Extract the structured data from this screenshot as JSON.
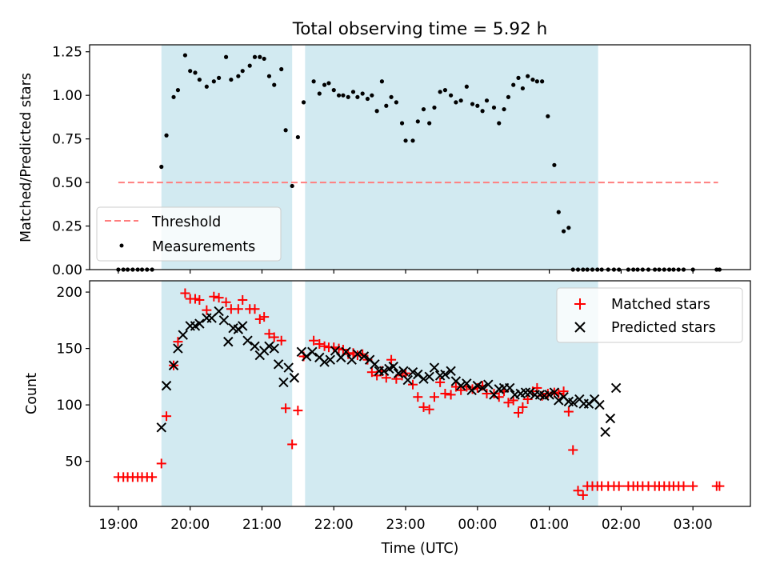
{
  "title": "Total observing time = 5.92 h",
  "colors": {
    "shade": "#add8e6",
    "threshold": "#ff7f7f",
    "matched": "#ff0000",
    "predicted": "#000000",
    "measurements": "#000000"
  },
  "chart_data": [
    {
      "type": "scatter",
      "panel": "top",
      "ylabel": "Matched/Predicted stars",
      "xlabel": "",
      "xlim": [
        18.6,
        27.8
      ],
      "ylim": [
        0,
        1.29
      ],
      "yticks": [
        0,
        0.25,
        0.5,
        0.75,
        1.0,
        1.25
      ],
      "ytick_labels": [
        "0.00",
        "0.25",
        "0.50",
        "0.75",
        "1.00",
        "1.25"
      ],
      "xticks": [
        19,
        20,
        21,
        22,
        23,
        24,
        25,
        26,
        27
      ],
      "xtick_labels_shown": false,
      "shaded_intervals": [
        [
          19.6,
          21.42
        ],
        [
          21.6,
          25.68
        ]
      ],
      "legend": {
        "placement": "lower-left",
        "entries": [
          "Threshold",
          "Measurements"
        ]
      },
      "threshold": {
        "name": "Threshold",
        "value": 0.5,
        "x_range": [
          19.0,
          27.35
        ],
        "style": "dashed"
      },
      "series": [
        {
          "name": "Measurements",
          "marker": "dot",
          "x": [
            19.0,
            19.07,
            19.13,
            19.2,
            19.27,
            19.33,
            19.4,
            19.47,
            19.6,
            19.67,
            19.77,
            19.83,
            19.93,
            20.0,
            20.07,
            20.13,
            20.23,
            20.33,
            20.4,
            20.5,
            20.57,
            20.67,
            20.73,
            20.83,
            20.9,
            20.97,
            21.03,
            21.1,
            21.17,
            21.27,
            21.33,
            21.42,
            21.5,
            21.58,
            21.72,
            21.8,
            21.87,
            21.93,
            22.0,
            22.07,
            22.13,
            22.2,
            22.27,
            22.33,
            22.4,
            22.47,
            22.53,
            22.6,
            22.67,
            22.73,
            22.8,
            22.87,
            22.95,
            23.0,
            23.1,
            23.17,
            23.25,
            23.33,
            23.4,
            23.48,
            23.55,
            23.63,
            23.7,
            23.77,
            23.85,
            23.93,
            24.0,
            24.07,
            24.13,
            24.23,
            24.3,
            24.37,
            24.43,
            24.5,
            24.57,
            24.63,
            24.7,
            24.77,
            24.83,
            24.9,
            24.98,
            25.07,
            25.13,
            25.2,
            25.27,
            25.33,
            25.4,
            25.47,
            25.53,
            25.6,
            25.67,
            25.73,
            25.82,
            25.9,
            25.97,
            26.1,
            26.17,
            26.23,
            26.3,
            26.38,
            26.47,
            26.53,
            26.6,
            26.67,
            26.73,
            26.8,
            26.87,
            27.0,
            27.33,
            27.37
          ],
          "y": [
            0,
            0,
            0,
            0,
            0,
            0,
            0,
            0,
            0.59,
            0.77,
            0.99,
            1.03,
            1.23,
            1.14,
            1.13,
            1.09,
            1.05,
            1.08,
            1.1,
            1.22,
            1.09,
            1.11,
            1.14,
            1.17,
            1.22,
            1.22,
            1.21,
            1.11,
            1.06,
            1.15,
            0.8,
            0.48,
            0.76,
            0.96,
            1.08,
            1.01,
            1.06,
            1.07,
            1.03,
            1.0,
            1.0,
            0.99,
            1.02,
            0.99,
            1.01,
            0.98,
            1.0,
            0.91,
            1.08,
            0.94,
            0.99,
            0.96,
            0.84,
            0.74,
            0.74,
            0.85,
            0.92,
            0.84,
            0.93,
            1.02,
            1.03,
            1.0,
            0.96,
            0.97,
            1.05,
            0.95,
            0.94,
            0.91,
            0.97,
            0.93,
            0.84,
            0.92,
            0.99,
            1.06,
            1.1,
            1.04,
            1.11,
            1.09,
            1.08,
            1.08,
            0.88,
            0.6,
            0.33,
            0.22,
            0.24,
            0,
            0,
            0,
            0,
            0,
            0,
            0,
            0,
            0,
            0,
            0,
            0,
            0,
            0,
            0,
            0,
            0,
            0,
            0,
            0,
            0,
            0,
            0,
            0,
            0
          ]
        }
      ]
    },
    {
      "type": "scatter",
      "panel": "bottom",
      "ylabel": "Count",
      "xlabel": "Time (UTC)",
      "xlim": [
        18.6,
        27.8
      ],
      "ylim": [
        10,
        210
      ],
      "yticks": [
        50,
        100,
        150,
        200
      ],
      "ytick_labels": [
        "50",
        "100",
        "150",
        "200"
      ],
      "xticks": [
        19,
        20,
        21,
        22,
        23,
        24,
        25,
        26,
        27
      ],
      "xtick_labels": [
        "19:00",
        "20:00",
        "21:00",
        "22:00",
        "23:00",
        "00:00",
        "01:00",
        "02:00",
        "03:00"
      ],
      "shaded_intervals": [
        [
          19.6,
          21.42
        ],
        [
          21.6,
          25.68
        ]
      ],
      "legend": {
        "placement": "top-right",
        "entries": [
          "Matched stars",
          "Predicted stars"
        ]
      },
      "series": [
        {
          "name": "Matched stars",
          "marker": "plus",
          "x": [
            19.0,
            19.07,
            19.13,
            19.2,
            19.27,
            19.33,
            19.4,
            19.47,
            19.6,
            19.67,
            19.77,
            19.83,
            19.93,
            20.0,
            20.07,
            20.13,
            20.23,
            20.33,
            20.4,
            20.5,
            20.57,
            20.67,
            20.73,
            20.83,
            20.9,
            20.97,
            21.03,
            21.1,
            21.17,
            21.27,
            21.33,
            21.42,
            21.5,
            21.58,
            21.72,
            21.8,
            21.87,
            21.93,
            22.0,
            22.07,
            22.13,
            22.2,
            22.27,
            22.33,
            22.4,
            22.47,
            22.53,
            22.6,
            22.67,
            22.73,
            22.8,
            22.87,
            22.95,
            23.0,
            23.1,
            23.17,
            23.25,
            23.33,
            23.4,
            23.48,
            23.55,
            23.63,
            23.7,
            23.77,
            23.85,
            23.93,
            24.0,
            24.07,
            24.13,
            24.23,
            24.3,
            24.37,
            24.43,
            24.5,
            24.57,
            24.63,
            24.7,
            24.77,
            24.83,
            24.9,
            24.98,
            25.07,
            25.13,
            25.2,
            25.27,
            25.33,
            25.4,
            25.47,
            25.53,
            25.6,
            25.67,
            25.73,
            25.82,
            25.9,
            25.97,
            26.1,
            26.17,
            26.23,
            26.3,
            26.38,
            26.47,
            26.53,
            26.6,
            26.67,
            26.73,
            26.8,
            26.87,
            27.0,
            27.33,
            27.37
          ],
          "y": [
            36,
            36,
            36,
            36,
            36,
            36,
            36,
            36,
            48,
            90,
            135,
            156,
            199,
            194,
            194,
            193,
            184,
            196,
            195,
            191,
            185,
            185,
            193,
            185,
            185,
            176,
            178,
            163,
            160,
            157,
            97,
            65,
            95,
            143,
            157,
            154,
            152,
            151,
            151,
            150,
            149,
            145,
            146,
            144,
            145,
            140,
            129,
            126,
            130,
            124,
            140,
            123,
            126,
            128,
            118,
            107,
            98,
            96,
            107,
            120,
            110,
            109,
            116,
            113,
            116,
            114,
            115,
            117,
            110,
            110,
            107,
            112,
            102,
            104,
            93,
            98,
            105,
            112,
            115,
            108,
            110,
            111,
            110,
            112,
            94,
            60,
            24,
            20,
            28,
            28,
            28,
            28,
            28,
            28,
            28,
            28,
            28,
            28,
            28,
            28,
            28,
            28,
            28,
            28,
            28,
            28,
            28,
            28,
            28,
            28
          ]
        },
        {
          "name": "Predicted stars",
          "marker": "x",
          "x": [
            19.6,
            19.67,
            19.77,
            19.83,
            19.9,
            20.0,
            20.07,
            20.13,
            20.23,
            20.3,
            20.4,
            20.47,
            20.53,
            20.6,
            20.67,
            20.73,
            20.8,
            20.9,
            20.97,
            21.03,
            21.1,
            21.17,
            21.23,
            21.3,
            21.37,
            21.45,
            21.55,
            21.62,
            21.7,
            21.8,
            21.87,
            21.95,
            22.02,
            22.1,
            22.17,
            22.25,
            22.33,
            22.42,
            22.5,
            22.57,
            22.63,
            22.7,
            22.77,
            22.83,
            22.9,
            22.97,
            23.03,
            23.1,
            23.17,
            23.25,
            23.33,
            23.4,
            23.48,
            23.55,
            23.63,
            23.7,
            23.77,
            23.85,
            23.92,
            24.0,
            24.07,
            24.15,
            24.23,
            24.3,
            24.37,
            24.45,
            24.52,
            24.6,
            24.67,
            24.73,
            24.8,
            24.87,
            24.93,
            25.0,
            25.07,
            25.13,
            25.2,
            25.27,
            25.33,
            25.42,
            25.48,
            25.55,
            25.63,
            25.7,
            25.78,
            25.85,
            25.93
          ],
          "y": [
            80,
            117,
            135,
            150,
            162,
            170,
            170,
            172,
            177,
            177,
            183,
            175,
            156,
            168,
            167,
            170,
            157,
            152,
            144,
            148,
            152,
            150,
            136,
            120,
            133,
            124,
            147,
            143,
            147,
            142,
            138,
            140,
            148,
            142,
            147,
            140,
            145,
            143,
            140,
            136,
            130,
            130,
            132,
            134,
            128,
            130,
            122,
            129,
            127,
            123,
            125,
            133,
            126,
            127,
            130,
            121,
            117,
            119,
            113,
            117,
            115,
            118,
            109,
            114,
            115,
            115,
            109,
            110,
            111,
            111,
            109,
            109,
            108,
            109,
            111,
            104,
            107,
            103,
            102,
            105,
            101,
            101,
            105,
            100,
            76,
            88,
            115
          ]
        }
      ]
    }
  ]
}
